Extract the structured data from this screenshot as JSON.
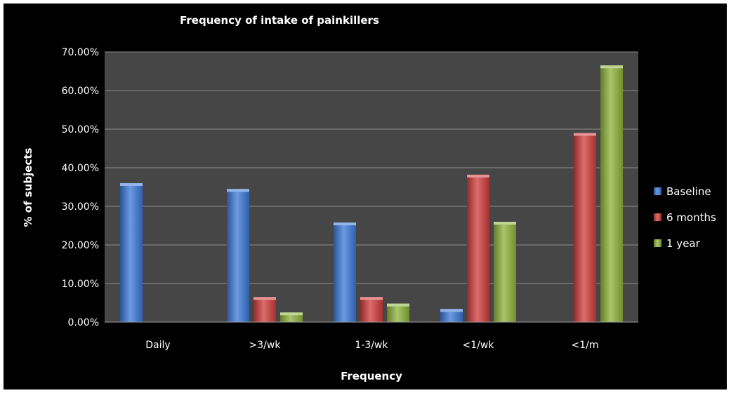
{
  "chart_data": {
    "type": "bar",
    "title": "Frequency of intake of painkillers",
    "xlabel": "Frequency",
    "ylabel": "% of subjects",
    "categories": [
      "Daily",
      ">3/wk",
      "1-3/wk",
      "<1/wk",
      "<1/m"
    ],
    "ylim": [
      0,
      70
    ],
    "yticks": [
      "0.00%",
      "10.00%",
      "20.00%",
      "30.00%",
      "40.00%",
      "50.00%",
      "60.00%",
      "70.00%"
    ],
    "grid": true,
    "legend_position": "right",
    "series": [
      {
        "name": "Baseline",
        "color": "#3b78d8",
        "values": [
          36.0,
          34.5,
          25.8,
          3.4,
          0.0
        ]
      },
      {
        "name": "6 months",
        "color": "#d13b3b",
        "values": [
          0.0,
          6.5,
          6.5,
          38.2,
          49.0
        ]
      },
      {
        "name": "1 year",
        "color": "#8db33a",
        "values": [
          0.0,
          2.5,
          4.8,
          26.0,
          66.5
        ]
      }
    ]
  }
}
